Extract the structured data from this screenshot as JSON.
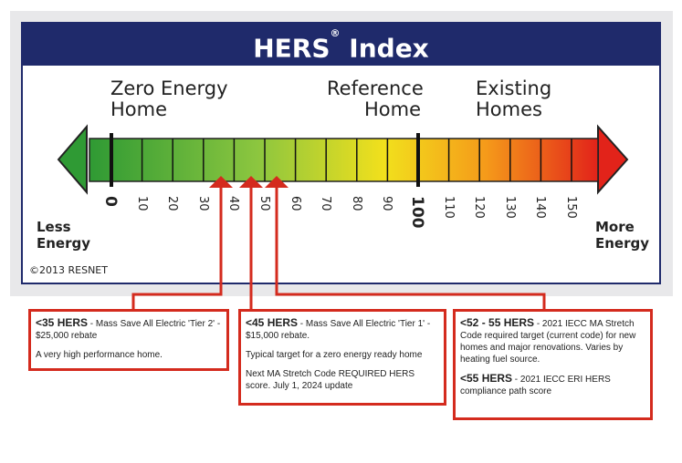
{
  "title": "HERS",
  "title_reg": "®",
  "title_suffix": "Index",
  "headings": {
    "zero_line1": "Zero Energy",
    "zero_line2": "Home",
    "ref_line1": "Reference",
    "ref_line2": "Home",
    "exist_line1": "Existing",
    "exist_line2": "Homes"
  },
  "less_line1": "Less",
  "less_line2": "Energy",
  "more_line1": "More",
  "more_line2": "Energy",
  "copyright": "©2013 RESNET",
  "scale": {
    "ticks": [
      {
        "value": "0",
        "major": true
      },
      {
        "value": "10",
        "major": false
      },
      {
        "value": "20",
        "major": false
      },
      {
        "value": "30",
        "major": false
      },
      {
        "value": "40",
        "major": false
      },
      {
        "value": "50",
        "major": false
      },
      {
        "value": "60",
        "major": false
      },
      {
        "value": "70",
        "major": false
      },
      {
        "value": "80",
        "major": false
      },
      {
        "value": "90",
        "major": false
      },
      {
        "value": "100",
        "major": true
      },
      {
        "value": "110",
        "major": false
      },
      {
        "value": "120",
        "major": false
      },
      {
        "value": "130",
        "major": false
      },
      {
        "value": "140",
        "major": false
      },
      {
        "value": "150",
        "major": false
      }
    ],
    "markers": [
      35,
      45,
      52
    ],
    "colors": {
      "green": "#2f9a34",
      "light_green": "#8cc63f",
      "yellow": "#f2e01c",
      "orange": "#f59a1a",
      "red": "#e2231a",
      "callout": "#d42b1e",
      "banner": "#1f2a6b"
    }
  },
  "box1": {
    "bold": "<35 HERS",
    "text": " - Mass Save All Electric 'Tier 2' - $25,000 rebate",
    "note": "A very high performance home."
  },
  "box2": {
    "bold": "<45 HERS",
    "text": " - Mass Save All Electric 'Tier 1' - $15,000 rebate.",
    "note1": "Typical target for a zero energy ready home",
    "note2": "Next MA Stretch Code REQUIRED HERS score. July 1, 2024 update"
  },
  "box3": {
    "bold1": "<52 - 55 HERS",
    "text1": " - 2021 IECC MA Stretch Code required target (current code) for new homes and major renovations. Varies by heating fuel source.",
    "bold2": "<55 HERS",
    "text2": " - 2021 IECC ERI HERS compliance path score"
  }
}
